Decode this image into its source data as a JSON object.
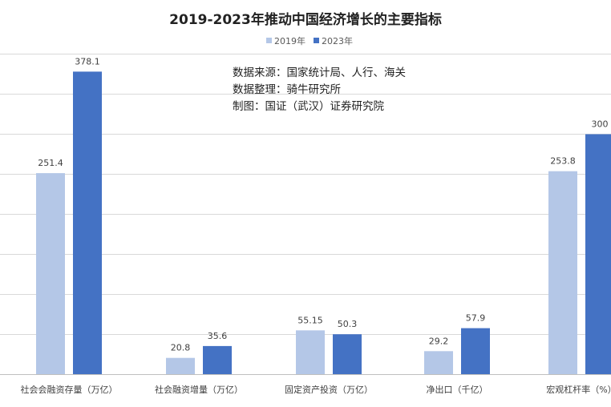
{
  "chart_data": {
    "type": "bar",
    "title": "2019-2023年推动中国经济增长的主要指标",
    "categories": [
      "社会会融资存量（万亿）",
      "社会融资增量（万亿）",
      "固定资产投资（万亿）",
      "净出口（千亿）",
      "宏观杠杆率（%）"
    ],
    "series": [
      {
        "name": "2019年",
        "values": [
          251.4,
          20.8,
          55.15,
          29.2,
          253.8
        ]
      },
      {
        "name": "2023年",
        "values": [
          378.1,
          35.6,
          50.3,
          57.9,
          300
        ]
      }
    ],
    "value_labels": [
      [
        "251.4",
        "20.8",
        "55.15",
        "29.2",
        "253.8"
      ],
      [
        "378.1",
        "35.6",
        "50.3",
        "57.9",
        "300"
      ]
    ],
    "ylim": [
      0,
      400
    ],
    "grid": true,
    "legend_position": "top-center",
    "colors": [
      "#b4c7e7",
      "#4472c4"
    ],
    "notes": [
      "数据来源：国家统计局、人行、海关",
      "数据整理：骑牛研究所",
      "制图：国证（武汉）证券研究院"
    ]
  }
}
